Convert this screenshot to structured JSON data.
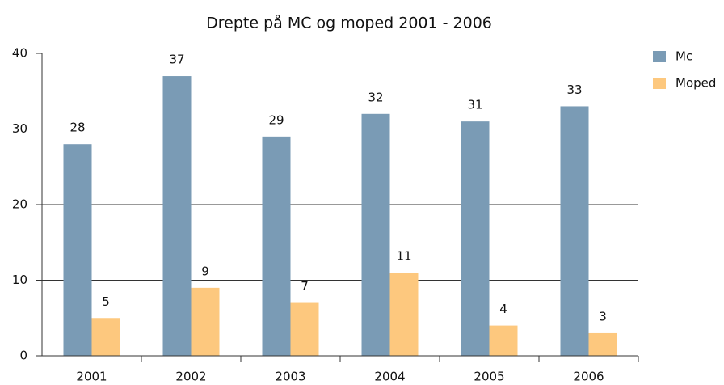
{
  "chart_data": {
    "type": "bar",
    "title": "Drepte på MC og moped 2001 - 2006",
    "categories": [
      "2001",
      "2002",
      "2003",
      "2004",
      "2005",
      "2006"
    ],
    "series": [
      {
        "name": "Mc",
        "color": "#7a9bb5",
        "values": [
          28,
          37,
          29,
          32,
          31,
          33
        ]
      },
      {
        "name": "Moped",
        "color": "#fdc87e",
        "values": [
          5,
          9,
          7,
          11,
          4,
          3
        ]
      }
    ],
    "ylim": [
      0,
      40
    ],
    "yticks": [
      0,
      10,
      20,
      30,
      40
    ],
    "grid": true,
    "legend": "right"
  }
}
